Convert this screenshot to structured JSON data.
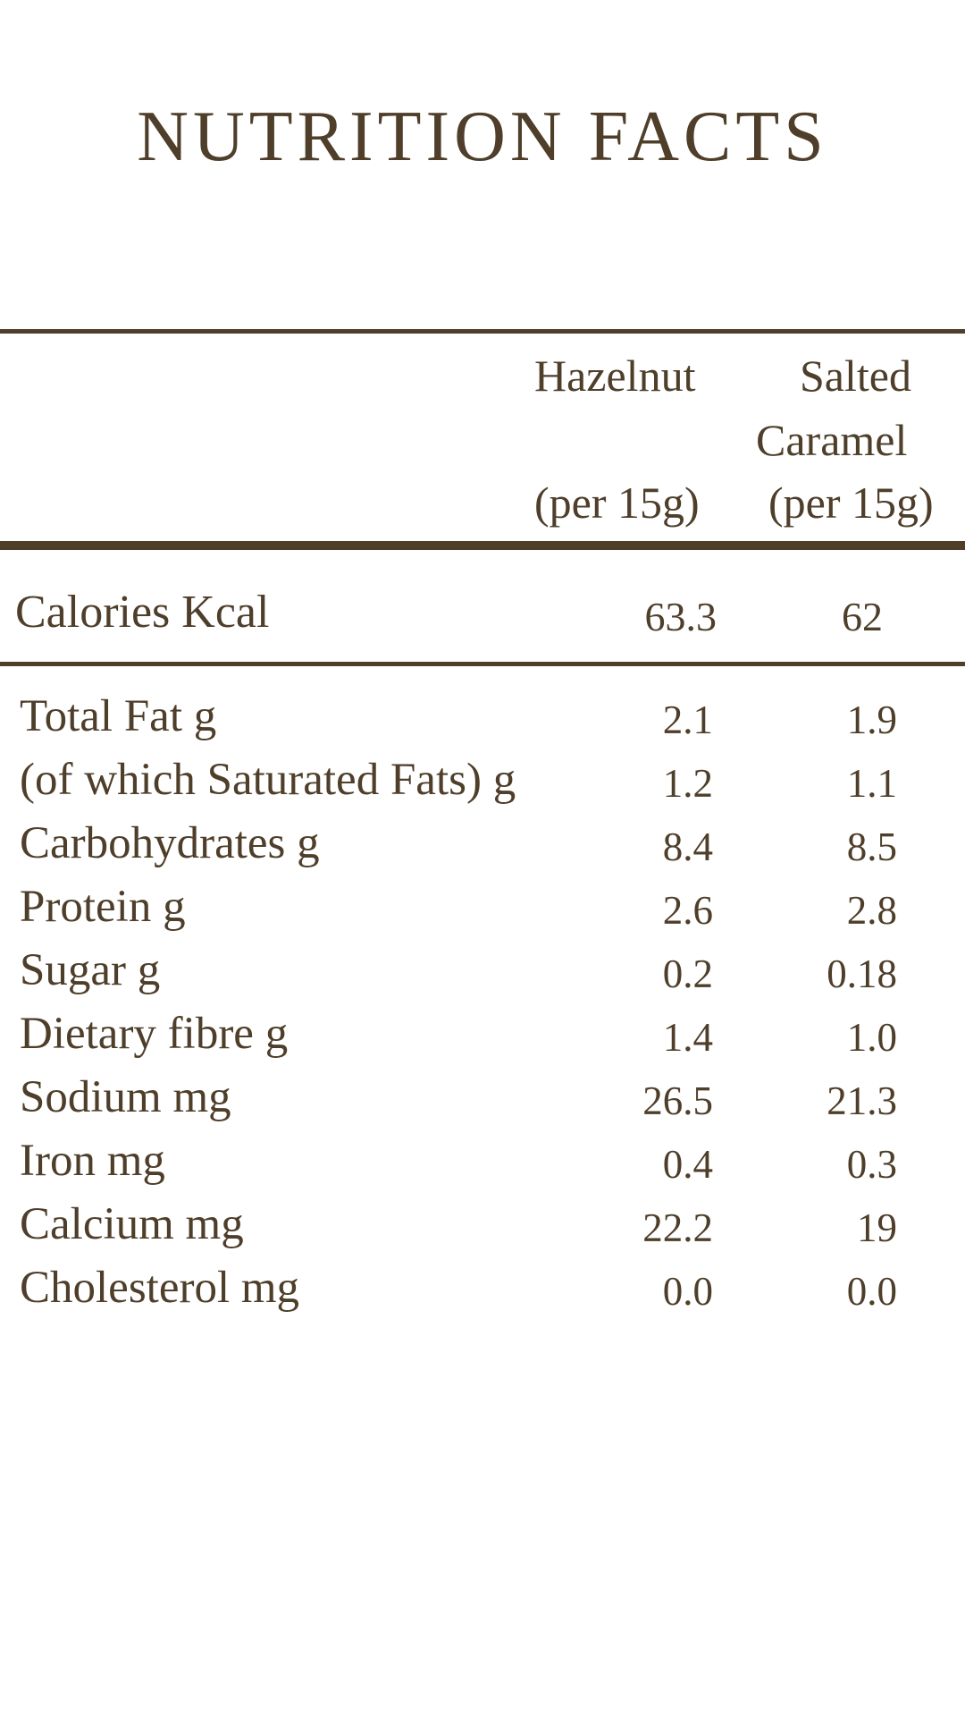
{
  "title": "NUTRITION FACTS",
  "header": {
    "col1_name": "Hazelnut",
    "col1_unit": "(per 15g)",
    "col2_name_line1": "Salted",
    "col2_name_line2": "Caramel",
    "col2_unit": "(per 15g)"
  },
  "calories": {
    "label": "Calories Kcal",
    "hazelnut": "63.3",
    "salted_caramel": "62"
  },
  "rows": [
    {
      "label": "Total Fat g",
      "hazelnut": "2.1",
      "salted_caramel": "1.9"
    },
    {
      "label": "(of which Saturated Fats) g",
      "hazelnut": "1.2",
      "salted_caramel": "1.1"
    },
    {
      "label": "Carbohydrates g",
      "hazelnut": "8.4",
      "salted_caramel": "8.5"
    },
    {
      "label": "Protein g",
      "hazelnut": "2.6",
      "salted_caramel": "2.8"
    },
    {
      "label": "Sugar g",
      "hazelnut": "0.2",
      "salted_caramel": "0.18"
    },
    {
      "label": "Dietary fibre g",
      "hazelnut": "1.4",
      "salted_caramel": "1.0"
    },
    {
      "label": "Sodium mg",
      "hazelnut": "26.5",
      "salted_caramel": "21.3"
    },
    {
      "label": "Iron mg",
      "hazelnut": "0.4",
      "salted_caramel": "0.3"
    },
    {
      "label": "Calcium mg",
      "hazelnut": "22.2",
      "salted_caramel": "19"
    },
    {
      "label": "Cholesterol mg",
      "hazelnut": "0.0",
      "salted_caramel": "0.0"
    }
  ],
  "colors": {
    "text": "#4e3e2a",
    "background": "#ffffff"
  }
}
